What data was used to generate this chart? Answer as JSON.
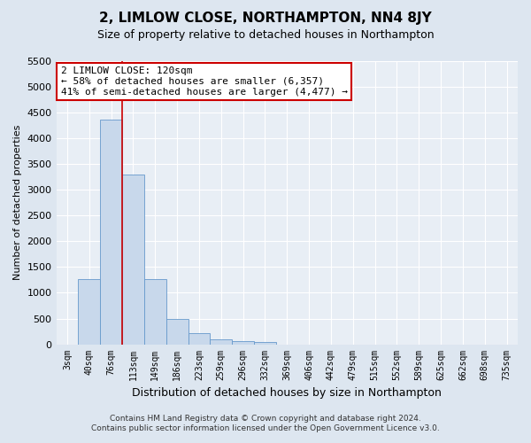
{
  "title": "2, LIMLOW CLOSE, NORTHAMPTON, NN4 8JY",
  "subtitle": "Size of property relative to detached houses in Northampton",
  "xlabel": "Distribution of detached houses by size in Northampton",
  "ylabel": "Number of detached properties",
  "footer_line1": "Contains HM Land Registry data © Crown copyright and database right 2024.",
  "footer_line2": "Contains public sector information licensed under the Open Government Licence v3.0.",
  "annotation_title": "2 LIMLOW CLOSE: 120sqm",
  "annotation_line2": "← 58% of detached houses are smaller (6,357)",
  "annotation_line3": "41% of semi-detached houses are larger (4,477) →",
  "bar_color": "#c8d8eb",
  "bar_edge_color": "#6699cc",
  "vline_color": "#cc0000",
  "vline_x_index": 3,
  "categories": [
    "3sqm",
    "40sqm",
    "76sqm",
    "113sqm",
    "149sqm",
    "186sqm",
    "223sqm",
    "259sqm",
    "296sqm",
    "332sqm",
    "369sqm",
    "406sqm",
    "442sqm",
    "479sqm",
    "515sqm",
    "552sqm",
    "589sqm",
    "625sqm",
    "662sqm",
    "698sqm",
    "735sqm"
  ],
  "values": [
    0,
    1260,
    4360,
    3300,
    1260,
    490,
    220,
    90,
    60,
    50,
    0,
    0,
    0,
    0,
    0,
    0,
    0,
    0,
    0,
    0,
    0
  ],
  "ylim": [
    0,
    5500
  ],
  "yticks": [
    0,
    500,
    1000,
    1500,
    2000,
    2500,
    3000,
    3500,
    4000,
    4500,
    5000,
    5500
  ],
  "bg_color": "#dde6f0",
  "plot_bg_color": "#e8eef5",
  "grid_color": "#ffffff",
  "annotation_box_facecolor": "#ffffff",
  "annotation_box_edgecolor": "#cc0000",
  "title_fontsize": 11,
  "subtitle_fontsize": 9,
  "ylabel_fontsize": 8,
  "xlabel_fontsize": 9,
  "tick_fontsize": 8,
  "xtick_fontsize": 7,
  "footer_fontsize": 6.5,
  "ann_fontsize": 8
}
